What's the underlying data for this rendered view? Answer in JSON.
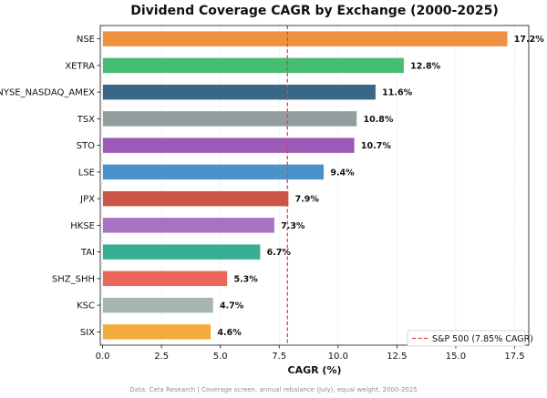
{
  "chart_data": {
    "type": "bar",
    "orientation": "horizontal",
    "title": "Dividend Coverage CAGR by Exchange (2000-2025)",
    "xlabel": "CAGR (%)",
    "ylabel": "",
    "xlim": [
      0,
      18
    ],
    "xticks": [
      "0.0",
      "2.5",
      "5.0",
      "7.5",
      "10.0",
      "12.5",
      "15.0",
      "17.5"
    ],
    "xtick_values": [
      0,
      2.5,
      5,
      7.5,
      10,
      12.5,
      15,
      17.5
    ],
    "grid": "vertical-dashed",
    "bars": [
      {
        "category": "NSE",
        "value": 17.2,
        "label": "17.2%",
        "color": "#EE9140"
      },
      {
        "category": "XETRA",
        "value": 12.8,
        "label": "12.8%",
        "color": "#46BD73"
      },
      {
        "category": "NYSE_NASDAQ_AMEX",
        "value": 11.6,
        "label": "11.6%",
        "color": "#3A6687"
      },
      {
        "category": "TSX",
        "value": 10.8,
        "label": "10.8%",
        "color": "#939D9D"
      },
      {
        "category": "STO",
        "value": 10.7,
        "label": "10.7%",
        "color": "#9C5BB6"
      },
      {
        "category": "LSE",
        "value": 9.4,
        "label": "9.4%",
        "color": "#4A93C8"
      },
      {
        "category": "JPX",
        "value": 7.9,
        "label": "7.9%",
        "color": "#CB5648"
      },
      {
        "category": "HKSE",
        "value": 7.3,
        "label": "7.3%",
        "color": "#A772C1"
      },
      {
        "category": "TAI",
        "value": 6.7,
        "label": "6.7%",
        "color": "#3AAE93"
      },
      {
        "category": "SHZ_SHH",
        "value": 5.3,
        "label": "5.3%",
        "color": "#EC6659"
      },
      {
        "category": "KSC",
        "value": 4.7,
        "label": "4.7%",
        "color": "#A7B4B4"
      },
      {
        "category": "SIX",
        "value": 4.6,
        "label": "4.6%",
        "color": "#F2AC3C"
      }
    ],
    "reference_line": {
      "value": 7.85,
      "label": "S&P 500 (7.85% CAGR)",
      "color": "#E0463C",
      "style": "dashed"
    },
    "legend_position": "bottom-right"
  },
  "footer": "Data: Ceta Research | Coverage screen, annual rebalance (July), equal weight, 2000-2025"
}
